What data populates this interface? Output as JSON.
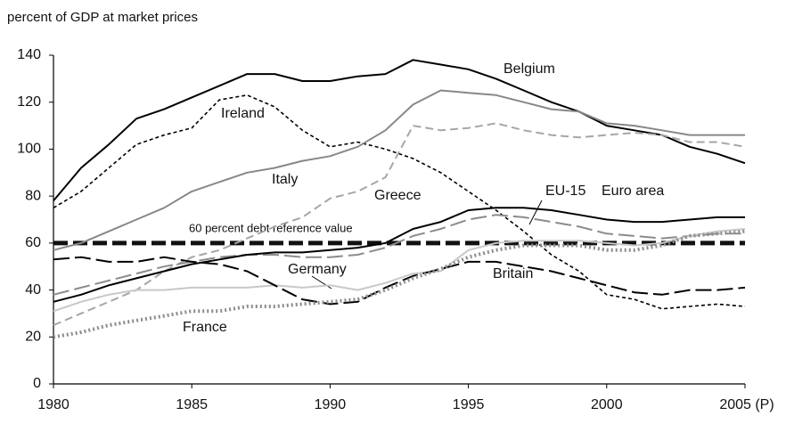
{
  "chart_data": {
    "type": "line",
    "y_axis_label": "percent of GDP at market prices",
    "x": [
      1980,
      1981,
      1982,
      1983,
      1984,
      1985,
      1986,
      1987,
      1988,
      1989,
      1990,
      1991,
      1992,
      1993,
      1994,
      1995,
      1996,
      1997,
      1998,
      1999,
      2000,
      2001,
      2002,
      2003,
      2004,
      2005
    ],
    "xlim": [
      1980,
      2005
    ],
    "xticks": [
      1980,
      1985,
      1990,
      1995,
      2000,
      {
        "value": 2005,
        "label": "2005 (P)"
      }
    ],
    "ylim": [
      0,
      140
    ],
    "yticks": [
      0,
      20,
      40,
      60,
      80,
      100,
      120,
      140
    ],
    "grid": false,
    "series": [
      {
        "name": "60 percent debt reference value",
        "color": "#111111",
        "dash": "heavy-dashed",
        "values": [
          60,
          60,
          60,
          60,
          60,
          60,
          60,
          60,
          60,
          60,
          60,
          60,
          60,
          60,
          60,
          60,
          60,
          60,
          60,
          60,
          60,
          60,
          60,
          60,
          60,
          60
        ]
      },
      {
        "name": "Belgium",
        "color": "#000000",
        "dash": "solid",
        "values": [
          78,
          92,
          102,
          113,
          117,
          122,
          127,
          132,
          132,
          129,
          129,
          131,
          132,
          138,
          136,
          134,
          130,
          125,
          120,
          116,
          110,
          108,
          106,
          101,
          98,
          94
        ]
      },
      {
        "name": "Ireland",
        "color": "#000000",
        "dash": "dotted-dash",
        "values": [
          75,
          82,
          92,
          102,
          106,
          109,
          121,
          123,
          118,
          108,
          101,
          103,
          100,
          96,
          90,
          82,
          74,
          65,
          55,
          48,
          38,
          36,
          32,
          33,
          34,
          33
        ]
      },
      {
        "name": "Italy",
        "color": "#888888",
        "dash": "solid",
        "values": [
          57,
          60,
          65,
          70,
          75,
          82,
          86,
          90,
          92,
          95,
          97,
          101,
          108,
          119,
          125,
          124,
          123,
          120,
          117,
          116,
          111,
          110,
          108,
          106,
          106,
          106
        ]
      },
      {
        "name": "Greece",
        "color": "#a6a6a6",
        "dash": "dashed",
        "values": [
          25,
          30,
          35,
          40,
          48,
          54,
          57,
          62,
          67,
          71,
          79,
          82,
          88,
          110,
          108,
          109,
          111,
          108,
          106,
          105,
          106,
          107,
          106,
          103,
          103,
          101
        ]
      },
      {
        "name": "EU-15",
        "color": "#8c8c8c",
        "dash": "long-dashed",
        "values": [
          38,
          41,
          44,
          47,
          50,
          52,
          54,
          55,
          55,
          54,
          54,
          55,
          58,
          63,
          66,
          70,
          72,
          71,
          69,
          67,
          64,
          63,
          62,
          63,
          64,
          64
        ]
      },
      {
        "name": "Euro area",
        "color": "#000000",
        "dash": "solid",
        "values": [
          35,
          38,
          42,
          45,
          48,
          51,
          53,
          55,
          56,
          56,
          57,
          58,
          60,
          66,
          69,
          74,
          75,
          75,
          74,
          72,
          70,
          69,
          69,
          70,
          71,
          71
        ]
      },
      {
        "name": "Germany",
        "color": "#c8c8c8",
        "dash": "solid",
        "values": [
          31,
          35,
          38,
          40,
          40,
          41,
          41,
          41,
          42,
          41,
          42,
          40,
          43,
          47,
          48,
          57,
          60,
          61,
          61,
          61,
          60,
          59,
          60,
          63,
          65,
          66
        ]
      },
      {
        "name": "Britain",
        "color": "#000000",
        "dash": "long-dashed",
        "values": [
          53,
          54,
          52,
          52,
          54,
          52,
          51,
          48,
          42,
          36,
          34,
          35,
          41,
          46,
          49,
          52,
          52,
          50,
          48,
          45,
          42,
          39,
          38,
          40,
          40,
          41
        ]
      },
      {
        "name": "France",
        "color": "#8c8c8c",
        "dash": "dotted",
        "values": [
          20,
          22,
          25,
          27,
          29,
          31,
          31,
          33,
          33,
          34,
          35,
          36,
          40,
          45,
          49,
          54,
          57,
          59,
          59,
          59,
          57,
          57,
          59,
          63,
          64,
          65
        ]
      }
    ]
  }
}
